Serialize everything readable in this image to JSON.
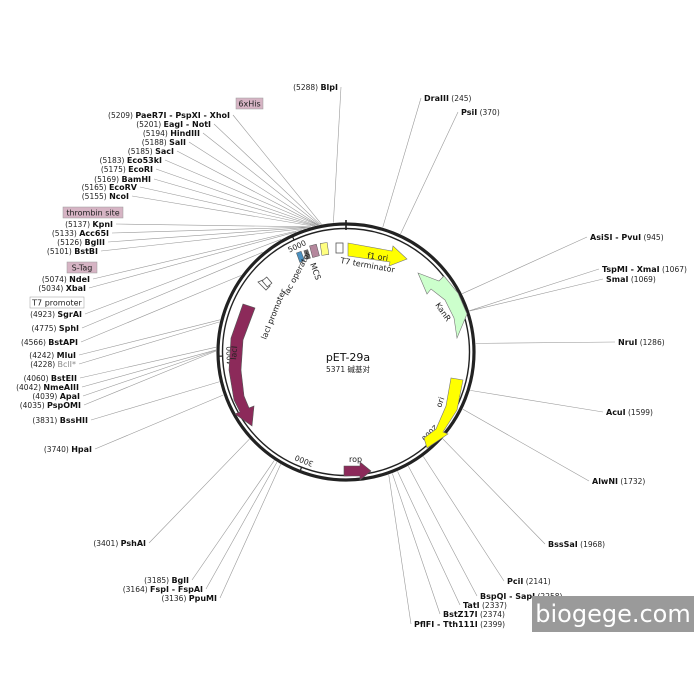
{
  "plasmid": {
    "name": "pET-29a",
    "size_text": "5371 碱基对"
  },
  "watermark": "biogege.com",
  "ticks": [
    "1000",
    "2000",
    "3000",
    "4000",
    "5000"
  ],
  "features": {
    "f1_ori": "f1 ori",
    "t7_terminator": "T7 terminator",
    "kanr": "KanR",
    "ori": "ori",
    "rop": "rop",
    "laci": "lacI",
    "laci_promoter": "lacI promoter",
    "mcs": "MCS",
    "lac_operator": "lac operator"
  },
  "tags": {
    "his": "6xHis",
    "thrombin": "thrombin site",
    "stag": "S-Tag",
    "t7promoter": "T7 promoter"
  },
  "sites": [
    {
      "name": "BlpI",
      "pos": "(5288)"
    },
    {
      "name": "PaeR7I - PspXI - XhoI",
      "pos": "(5209)"
    },
    {
      "name": "EagI - NotI",
      "pos": "(5201)"
    },
    {
      "name": "HindIII",
      "pos": "(5194)"
    },
    {
      "name": "SalI",
      "pos": "(5188)"
    },
    {
      "name": "SacI",
      "pos": "(5185)"
    },
    {
      "name": "Eco53kI",
      "pos": "(5183)"
    },
    {
      "name": "EcoRI",
      "pos": "(5175)"
    },
    {
      "name": "BamHI",
      "pos": "(5169)"
    },
    {
      "name": "EcoRV",
      "pos": "(5165)"
    },
    {
      "name": "NcoI",
      "pos": "(5155)"
    },
    {
      "name": "KpnI",
      "pos": "(5137)"
    },
    {
      "name": "Acc65I",
      "pos": "(5133)"
    },
    {
      "name": "BglII",
      "pos": "(5126)"
    },
    {
      "name": "BstBI",
      "pos": "(5101)"
    },
    {
      "name": "NdeI",
      "pos": "(5074)"
    },
    {
      "name": "XbaI",
      "pos": "(5034)"
    },
    {
      "name": "SgrAI",
      "pos": "(4923)"
    },
    {
      "name": "SphI",
      "pos": "(4775)"
    },
    {
      "name": "BstAPI",
      "pos": "(4566)"
    },
    {
      "name": "MluI",
      "pos": "(4242)"
    },
    {
      "name": "BclI*",
      "pos": "(4228)"
    },
    {
      "name": "BstEII",
      "pos": "(4060)"
    },
    {
      "name": "NmeAIII",
      "pos": "(4042)"
    },
    {
      "name": "ApaI",
      "pos": "(4039)"
    },
    {
      "name": "PspOMI",
      "pos": "(4035)"
    },
    {
      "name": "BssHII",
      "pos": "(3831)"
    },
    {
      "name": "HpaI",
      "pos": "(3740)"
    },
    {
      "name": "PshAI",
      "pos": "(3401)"
    },
    {
      "name": "BglI",
      "pos": "(3185)"
    },
    {
      "name": "FspI - FspAI",
      "pos": "(3164)"
    },
    {
      "name": "PpuMI",
      "pos": "(3136)"
    },
    {
      "name": "DraIII",
      "pos": "(245)"
    },
    {
      "name": "PsiI",
      "pos": "(370)"
    },
    {
      "name": "AsiSI - PvuI",
      "pos": "(945)"
    },
    {
      "name": "TspMI - XmaI",
      "pos": "(1067)"
    },
    {
      "name": "SmaI",
      "pos": "(1069)"
    },
    {
      "name": "NruI",
      "pos": "(1286)"
    },
    {
      "name": "AcuI",
      "pos": "(1599)"
    },
    {
      "name": "AlwNI",
      "pos": "(1732)"
    },
    {
      "name": "BssSaI",
      "pos": "(1968)"
    },
    {
      "name": "PciI",
      "pos": "(2141)"
    },
    {
      "name": "BspQI - SapI",
      "pos": "(2258)"
    },
    {
      "name": "TatI",
      "pos": "(2337)"
    },
    {
      "name": "BstZ17I",
      "pos": "(2374)"
    },
    {
      "name": "PflFI - Tth111I",
      "pos": "(2399)"
    }
  ]
}
